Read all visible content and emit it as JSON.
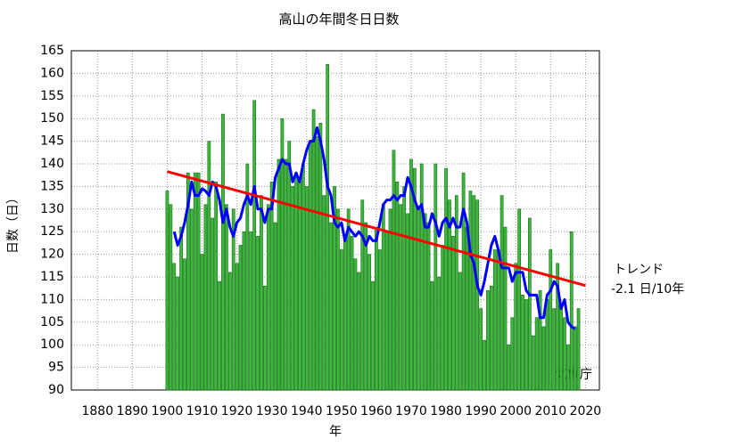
{
  "chart_data": {
    "type": "bar",
    "title": "高山の年間冬日日数",
    "xlabel": "年",
    "ylabel": "日数（日）",
    "annotations": [
      "トレンド",
      "-2.1 日/10年",
      "気象庁"
    ],
    "xlim": [
      1872.5,
      2024
    ],
    "ylim": [
      90,
      165
    ],
    "xticks": [
      1880,
      1890,
      1900,
      1910,
      1920,
      1930,
      1940,
      1950,
      1960,
      1970,
      1980,
      1990,
      2000,
      2010,
      2020
    ],
    "yticks": [
      90,
      95,
      100,
      105,
      110,
      115,
      120,
      125,
      130,
      135,
      140,
      145,
      150,
      155,
      160,
      165
    ],
    "grid": true,
    "x": [
      1900,
      1901,
      1902,
      1903,
      1904,
      1905,
      1906,
      1907,
      1908,
      1909,
      1910,
      1911,
      1912,
      1913,
      1914,
      1915,
      1916,
      1917,
      1918,
      1919,
      1920,
      1921,
      1922,
      1923,
      1924,
      1925,
      1926,
      1927,
      1928,
      1929,
      1930,
      1931,
      1932,
      1933,
      1934,
      1935,
      1936,
      1937,
      1938,
      1939,
      1940,
      1941,
      1942,
      1943,
      1944,
      1945,
      1946,
      1947,
      1948,
      1949,
      1950,
      1951,
      1952,
      1953,
      1954,
      1955,
      1956,
      1957,
      1958,
      1959,
      1960,
      1961,
      1962,
      1963,
      1964,
      1965,
      1966,
      1967,
      1968,
      1969,
      1970,
      1971,
      1972,
      1973,
      1974,
      1975,
      1976,
      1977,
      1978,
      1979,
      1980,
      1981,
      1982,
      1983,
      1984,
      1985,
      1986,
      1987,
      1988,
      1989,
      1990,
      1991,
      1992,
      1993,
      1994,
      1995,
      1996,
      1997,
      1998,
      1999,
      2000,
      2001,
      2002,
      2003,
      2004,
      2005,
      2006,
      2007,
      2008,
      2009,
      2010,
      2011,
      2012,
      2013,
      2014,
      2015,
      2016,
      2017,
      2018
    ],
    "series": [
      {
        "color": "#3cb83c",
        "values": [
          134,
          131,
          118,
          115,
          126,
          119,
          138,
          130,
          138,
          138,
          120,
          131,
          145,
          128,
          136,
          114,
          151,
          131,
          116,
          130,
          118,
          122,
          125,
          140,
          125,
          154,
          124,
          133,
          113,
          131,
          136,
          127,
          141,
          150,
          141,
          145,
          135,
          138,
          136,
          140,
          135,
          145,
          152,
          146,
          149,
          133,
          162,
          127,
          135,
          130,
          121,
          124,
          130,
          124,
          119,
          116,
          132,
          127,
          120,
          114,
          126,
          121,
          131,
          125,
          130,
          143,
          136,
          131,
          135,
          129,
          141,
          139,
          130,
          140,
          129,
          127,
          114,
          140,
          115,
          122,
          139,
          132,
          124,
          133,
          116,
          138,
          126,
          134,
          133,
          132,
          108,
          101,
          112,
          113,
          121,
          121,
          133,
          126,
          100,
          106,
          118,
          130,
          111,
          110,
          128,
          102,
          106,
          112,
          104,
          110,
          121,
          108,
          118,
          109,
          106,
          100,
          125,
          104,
          108
        ]
      },
      {
        "type": "line",
        "color": "#0000ff",
        "values": [
          null,
          null,
          125,
          122,
          124,
          127,
          131,
          136,
          133,
          133,
          134.5,
          134,
          133,
          136,
          135,
          132,
          127,
          130,
          126,
          124,
          127,
          128,
          131,
          133,
          131,
          135,
          130,
          130,
          127,
          130,
          130,
          137,
          139,
          141,
          140,
          140,
          136,
          138,
          136,
          140,
          143,
          145,
          145,
          148,
          145,
          141,
          135,
          133,
          127,
          126,
          127,
          123,
          126,
          125,
          124,
          125,
          124,
          122,
          124,
          123,
          123,
          127,
          131,
          132,
          132,
          133,
          132,
          133,
          133,
          137,
          135,
          132,
          130,
          131,
          126,
          126,
          129,
          127,
          124,
          127,
          128,
          126,
          128,
          126,
          126,
          130,
          127,
          120,
          118,
          113,
          111,
          114,
          118,
          122,
          124,
          121,
          117,
          117,
          117,
          114,
          116,
          116,
          116,
          112,
          111,
          111,
          111,
          106,
          106,
          111,
          112,
          114,
          113,
          108,
          110,
          105,
          104,
          103.5,
          null
        ]
      }
    ],
    "trend": {
      "color": "#ff0000",
      "x": [
        1900,
        2020
      ],
      "values": [
        138.3,
        113.1
      ]
    }
  }
}
